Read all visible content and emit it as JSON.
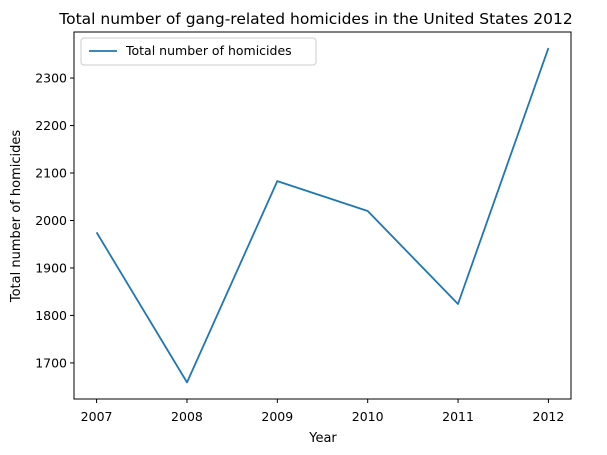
{
  "chart_data": {
    "type": "line",
    "title": "Total number of gang-related homicides in the United States 2012",
    "xlabel": "Year",
    "ylabel": "Total number of homicides",
    "x": [
      2007,
      2008,
      2009,
      2010,
      2011,
      2012
    ],
    "xticks": [
      "2007",
      "2008",
      "2009",
      "2010",
      "2011",
      "2012"
    ],
    "yticks": [
      "1700",
      "1800",
      "1900",
      "2000",
      "2100",
      "2200",
      "2300"
    ],
    "ytick_values": [
      1700,
      1800,
      1900,
      2000,
      2100,
      2200,
      2300
    ],
    "xlim": [
      2006.75,
      2012.25
    ],
    "ylim": [
      1624,
      2397
    ],
    "series": [
      {
        "name": "Total number of homicides",
        "values": [
          1975,
          1659,
          2083,
          2020,
          1824,
          2363
        ],
        "color": "#1f77b4"
      }
    ],
    "legend_position": "top-left",
    "grid": false
  }
}
